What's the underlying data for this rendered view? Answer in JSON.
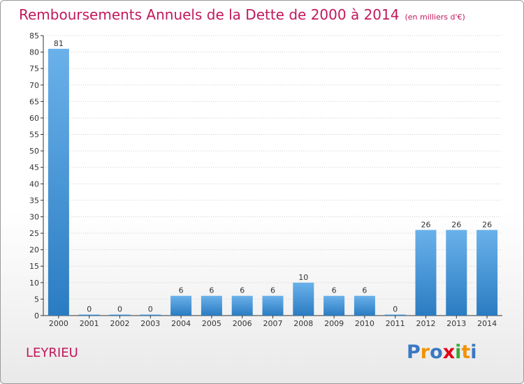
{
  "title": "Remboursements Annuels de la Dette de 2000 à 2014",
  "subtitle": "(en milliers d'€)",
  "commune": "LEYRIEU",
  "brand": {
    "letters": [
      "P",
      "r",
      "o",
      "x",
      "i",
      "t",
      "i"
    ],
    "colors": [
      "#3a78c2",
      "#f39200",
      "#3a78c2",
      "#e2001a",
      "#39a935",
      "#f39200",
      "#3a78c2"
    ]
  },
  "colors": {
    "title": "#c2185b",
    "bar_light": "#6ab1ea",
    "bar_dark": "#2a7cc2",
    "axis": "#333333",
    "grid": "#cfcfcf"
  },
  "chart_data": {
    "type": "bar",
    "title": "Remboursements Annuels de la Dette de 2000 à 2014",
    "subtitle": "(en milliers d'€)",
    "categories": [
      "2000",
      "2001",
      "2002",
      "2003",
      "2004",
      "2005",
      "2006",
      "2007",
      "2008",
      "2009",
      "2010",
      "2011",
      "2012",
      "2013",
      "2014"
    ],
    "values": [
      81,
      0,
      0,
      0,
      6,
      6,
      6,
      6,
      10,
      6,
      6,
      0,
      26,
      26,
      26
    ],
    "data_labels": [
      "81",
      "0",
      "0",
      "0",
      "6",
      "6",
      "6",
      "6",
      "10",
      "6",
      "6",
      "0",
      "26",
      "26",
      "26"
    ],
    "ylim": [
      0,
      85
    ],
    "yticks": [
      0,
      5,
      10,
      15,
      20,
      25,
      30,
      35,
      40,
      45,
      50,
      55,
      60,
      65,
      70,
      75,
      80,
      85
    ],
    "grid": true,
    "legend": "none"
  }
}
